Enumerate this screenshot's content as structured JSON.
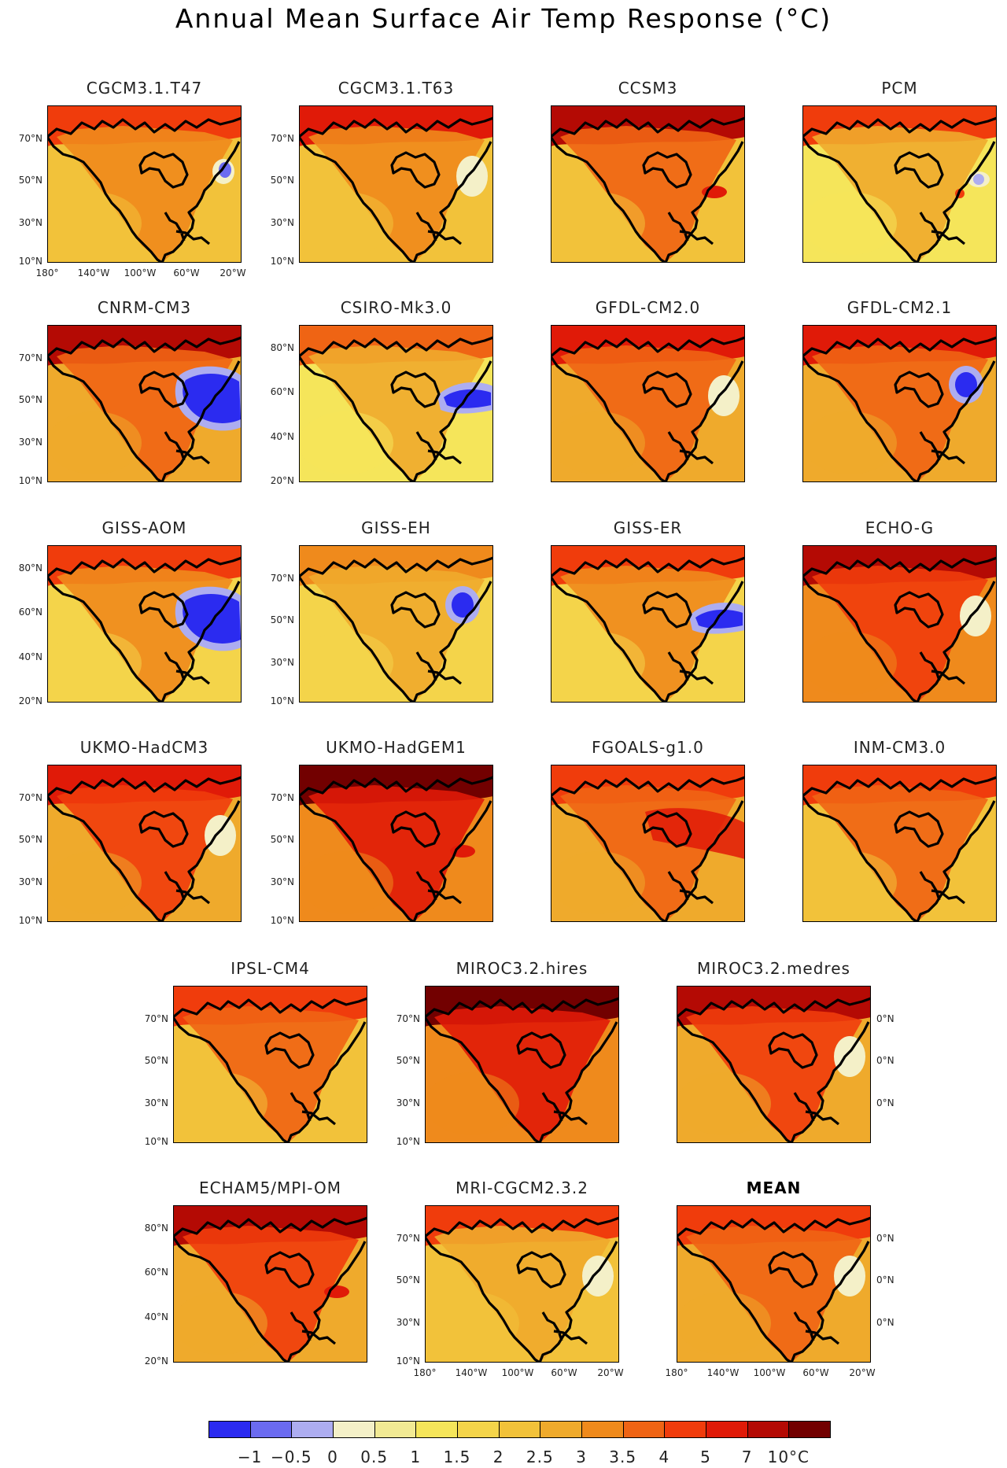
{
  "title": "Annual Mean Surface Air Temp Response (°C)",
  "colorbar": {
    "labels": [
      "−1",
      "−0.5",
      "0",
      "0.5",
      "1",
      "1.5",
      "2",
      "2.5",
      "3",
      "3.5",
      "4",
      "5",
      "7",
      "10°C"
    ],
    "colors": [
      "#2b2bf0",
      "#6b6bf0",
      "#adadf0",
      "#f4f0c8",
      "#f2ea94",
      "#f5e55a",
      "#f4d44a",
      "#f2c23a",
      "#efaa2c",
      "#ef8a1c",
      "#ef6414",
      "#f03c0c",
      "#e01a08",
      "#b40a04",
      "#720000"
    ]
  },
  "panels": [
    {
      "name": "CGCM3.1.T47",
      "labels": [
        "70°N",
        "50°N",
        "30°N",
        "10°N"
      ],
      "base": "#f2c23a",
      "arctic": "#f03c0c",
      "land": "#ef8a1c",
      "anomaly": "blue-small"
    },
    {
      "name": "CGCM3.1.T63",
      "labels": [
        "70°N",
        "50°N",
        "30°N",
        "10°N"
      ],
      "base": "#f2c23a",
      "arctic": "#e01a08",
      "land": "#ef8a1c",
      "anomaly": "white"
    },
    {
      "name": "CCSM3",
      "labels": [],
      "base": "#f2c23a",
      "arctic": "#b40a04",
      "land": "#ef6414",
      "anomaly": "red-dot"
    },
    {
      "name": "PCM",
      "labels": [],
      "base": "#f5e55a",
      "arctic": "#f03c0c",
      "land": "#efaa2c",
      "anomaly": "blue-tiny"
    },
    {
      "name": "CNRM-CM3",
      "labels": [
        "70°N",
        "50°N",
        "30°N",
        "10°N"
      ],
      "base": "#efaa2c",
      "arctic": "#b40a04",
      "land": "#ef6414",
      "anomaly": "blue-large"
    },
    {
      "name": "CSIRO-Mk3.0",
      "labels": [
        "80°N",
        "60°N",
        "40°N",
        "20°N"
      ],
      "base": "#f5e55a",
      "arctic": "#ef6414",
      "land": "#efaa2c",
      "anomaly": "blue-band"
    },
    {
      "name": "GFDL-CM2.0",
      "labels": [],
      "base": "#efaa2c",
      "arctic": "#e01a08",
      "land": "#ef6414",
      "anomaly": "white"
    },
    {
      "name": "GFDL-CM2.1",
      "labels": [],
      "base": "#efaa2c",
      "arctic": "#e01a08",
      "land": "#ef6414",
      "anomaly": "blue-mid"
    },
    {
      "name": "GISS-AOM",
      "labels": [
        "80°N",
        "60°N",
        "40°N",
        "20°N"
      ],
      "base": "#f4d44a",
      "arctic": "#f03c0c",
      "land": "#ef8a1c",
      "anomaly": "blue-large"
    },
    {
      "name": "GISS-EH",
      "labels": [
        "70°N",
        "50°N",
        "30°N",
        "10°N"
      ],
      "base": "#f4d44a",
      "arctic": "#ef8a1c",
      "land": "#efaa2c",
      "anomaly": "blue-mid"
    },
    {
      "name": "GISS-ER",
      "labels": [],
      "base": "#f4d44a",
      "arctic": "#f03c0c",
      "land": "#ef8a1c",
      "anomaly": "blue-band"
    },
    {
      "name": "ECHO-G",
      "labels": [],
      "base": "#ef8a1c",
      "arctic": "#b40a04",
      "land": "#f03c0c",
      "anomaly": "white"
    },
    {
      "name": "UKMO-HadCM3",
      "labels": [
        "70°N",
        "50°N",
        "30°N",
        "10°N"
      ],
      "base": "#efaa2c",
      "arctic": "#e01a08",
      "land": "#f03c0c",
      "anomaly": "white"
    },
    {
      "name": "UKMO-HadGEM1",
      "labels": [
        "70°N",
        "50°N",
        "30°N",
        "10°N"
      ],
      "base": "#ef8a1c",
      "arctic": "#720000",
      "land": "#e01a08",
      "anomaly": "red-dot"
    },
    {
      "name": "FGOALS-g1.0",
      "labels": [],
      "base": "#efaa2c",
      "arctic": "#f03c0c",
      "land": "#ef6414",
      "anomaly": "red-band"
    },
    {
      "name": "INM-CM3.0",
      "labels": [],
      "base": "#f2c23a",
      "arctic": "#f03c0c",
      "land": "#ef6414",
      "anomaly": "none"
    },
    {
      "name": "IPSL-CM4",
      "labels": [
        "70°N",
        "50°N",
        "30°N",
        "10°N"
      ],
      "base": "#f2c23a",
      "arctic": "#f03c0c",
      "land": "#ef6414",
      "anomaly": "none"
    },
    {
      "name": "MIROC3.2.hires",
      "labels": [
        "70°N",
        "50°N",
        "30°N",
        "10°N"
      ],
      "base": "#ef8a1c",
      "arctic": "#720000",
      "land": "#e01a08",
      "anomaly": "none"
    },
    {
      "name": "MIROC3.2.medres",
      "labels": [
        "0°N",
        "0°N",
        "0°N"
      ],
      "base": "#efaa2c",
      "arctic": "#b40a04",
      "land": "#f03c0c",
      "anomaly": "white"
    },
    {
      "name": "ECHAM5/MPI-OM",
      "labels": [
        "80°N",
        "60°N",
        "40°N",
        "20°N"
      ],
      "base": "#efaa2c",
      "arctic": "#b40a04",
      "land": "#f03c0c",
      "anomaly": "red-dot"
    },
    {
      "name": "MRI-CGCM2.3.2",
      "labels": [
        "70°N",
        "50°N",
        "30°N",
        "10°N"
      ],
      "base": "#f2c23a",
      "arctic": "#f03c0c",
      "land": "#efaa2c",
      "anomaly": "white"
    },
    {
      "name": "MEAN",
      "labels": [
        "0°N",
        "0°N",
        "0°N"
      ],
      "base": "#efaa2c",
      "arctic": "#f03c0c",
      "land": "#ef6414",
      "anomaly": "white"
    }
  ],
  "xlabels": [
    "180°",
    "140°W",
    "100°W",
    "60°W",
    "20°W"
  ]
}
